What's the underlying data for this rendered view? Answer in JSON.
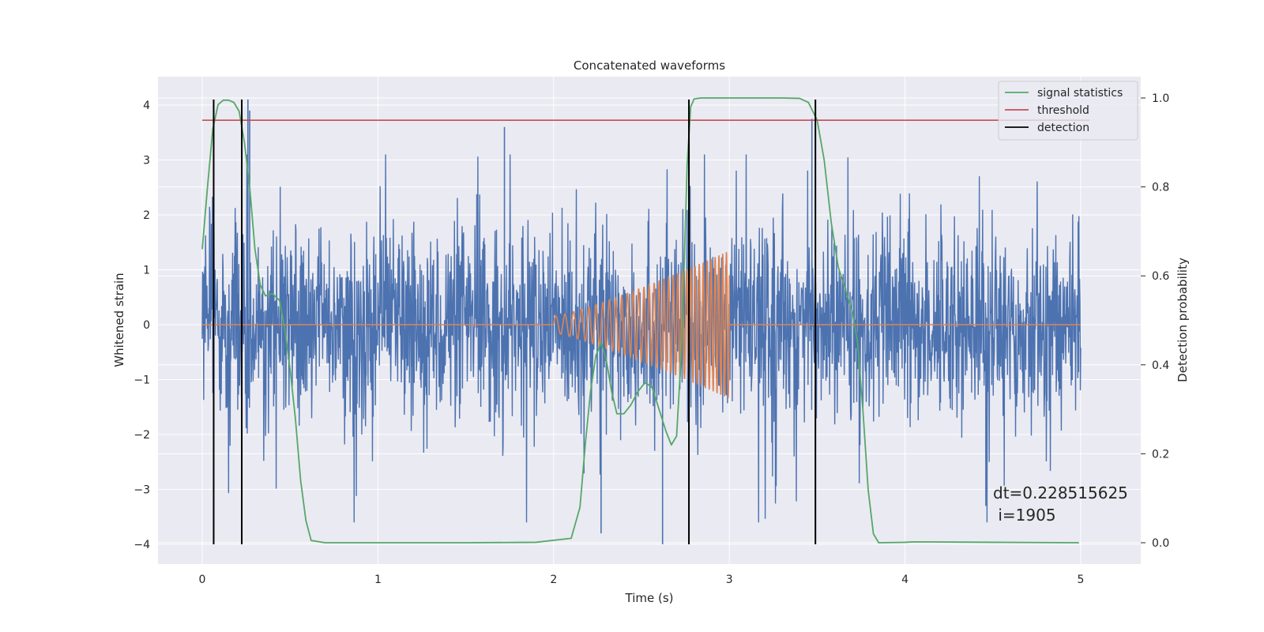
{
  "chart_data": {
    "type": "line",
    "title": "Concatenated waveforms",
    "xlabel": "Time (s)",
    "ylabel": "Whitened strain",
    "y2label": "Detection probability",
    "xlim": [
      -0.25,
      5.35
    ],
    "ylim": [
      -4.4,
      4.5
    ],
    "y2lim": [
      -0.05,
      1.04
    ],
    "x_ticks": [
      0,
      1,
      2,
      3,
      4,
      5
    ],
    "x_tick_labels": [
      "0",
      "1",
      "2",
      "3",
      "4",
      "5"
    ],
    "y_ticks": [
      -4,
      -3,
      -2,
      -1,
      0,
      1,
      2,
      3,
      4
    ],
    "y_tick_labels": [
      "−4",
      "−3",
      "−2",
      "−1",
      "0",
      "1",
      "2",
      "3",
      "4"
    ],
    "y2_ticks": [
      0.0,
      0.2,
      0.4,
      0.6,
      0.8,
      1.0
    ],
    "y2_tick_labels": [
      "0.0",
      "0.2",
      "0.4",
      "0.6",
      "0.8",
      "1.0"
    ],
    "grid": true,
    "legend_position": "top-right",
    "legend": [
      "signal statistics",
      "threshold",
      "detection"
    ],
    "colors": {
      "background": "#eaeaf2",
      "grid": "#ffffff",
      "strain": "#4c72b0",
      "injected": "#dd8452",
      "statistics": "#55a868",
      "threshold": "#c44e52",
      "detection": "#000000"
    },
    "series": [
      {
        "name": "",
        "role": "strain",
        "axis": "left",
        "x_range": [
          0,
          5
        ],
        "amplitude_range": [
          -4.0,
          4.1
        ],
        "peak_points": [
          {
            "x": 0.26,
            "y": 4.1
          },
          {
            "x": 0.27,
            "y": 3.9
          },
          {
            "x": 3.47,
            "y": 3.75
          },
          {
            "x": 1.72,
            "y": 3.6
          },
          {
            "x": 2.62,
            "y": -4.0
          },
          {
            "x": 2.27,
            "y": -3.8
          },
          {
            "x": 4.46,
            "y": -3.3
          }
        ]
      },
      {
        "name": "",
        "role": "injected waveform",
        "axis": "left",
        "flat_segments": [
          [
            0,
            2.0,
            0
          ],
          [
            3.0,
            5.0,
            0
          ]
        ],
        "chirp": {
          "start": 2.0,
          "end": 3.0,
          "amp_start": 0.15,
          "amp_end": 1.35
        }
      },
      {
        "name": "signal statistics",
        "axis": "right",
        "x": [
          0.0,
          0.03,
          0.06,
          0.09,
          0.12,
          0.15,
          0.18,
          0.21,
          0.24,
          0.27,
          0.3,
          0.33,
          0.36,
          0.4,
          0.44,
          0.47,
          0.5,
          0.53,
          0.56,
          0.59,
          0.62,
          0.7,
          1.0,
          1.5,
          1.9,
          2.1,
          2.15,
          2.18,
          2.21,
          2.24,
          2.27,
          2.3,
          2.33,
          2.36,
          2.4,
          2.44,
          2.48,
          2.52,
          2.56,
          2.6,
          2.64,
          2.67,
          2.7,
          2.73,
          2.76,
          2.78,
          2.8,
          2.84,
          3.0,
          3.3,
          3.4,
          3.45,
          3.5,
          3.54,
          3.58,
          3.62,
          3.66,
          3.7,
          3.73,
          3.76,
          3.79,
          3.82,
          3.85,
          4.0,
          4.05,
          4.5,
          4.99
        ],
        "values": [
          0.66,
          0.8,
          0.93,
          0.985,
          0.995,
          0.995,
          0.99,
          0.97,
          0.9,
          0.8,
          0.66,
          0.58,
          0.555,
          0.56,
          0.545,
          0.48,
          0.39,
          0.28,
          0.14,
          0.05,
          0.005,
          0.0,
          0.0,
          0.0,
          0.001,
          0.01,
          0.08,
          0.22,
          0.34,
          0.42,
          0.45,
          0.41,
          0.34,
          0.29,
          0.29,
          0.31,
          0.34,
          0.36,
          0.35,
          0.3,
          0.25,
          0.22,
          0.24,
          0.45,
          0.85,
          0.98,
          0.998,
          1.0,
          1.0,
          1.0,
          0.999,
          0.99,
          0.95,
          0.86,
          0.72,
          0.62,
          0.57,
          0.52,
          0.45,
          0.3,
          0.12,
          0.02,
          0.0,
          0.001,
          0.002,
          0.001,
          0.0
        ]
      },
      {
        "name": "threshold",
        "axis": "right",
        "x": [
          0.0,
          5.05
        ],
        "values": [
          0.95,
          0.95
        ]
      },
      {
        "name": "detection",
        "axis": "left",
        "type": "vlines",
        "x": [
          0.065,
          0.225,
          2.77,
          3.49
        ],
        "y_range": [
          -4.0,
          4.1
        ]
      }
    ],
    "annotation": {
      "line1": "dt=0.228515625",
      "line2": " i=1905"
    }
  }
}
